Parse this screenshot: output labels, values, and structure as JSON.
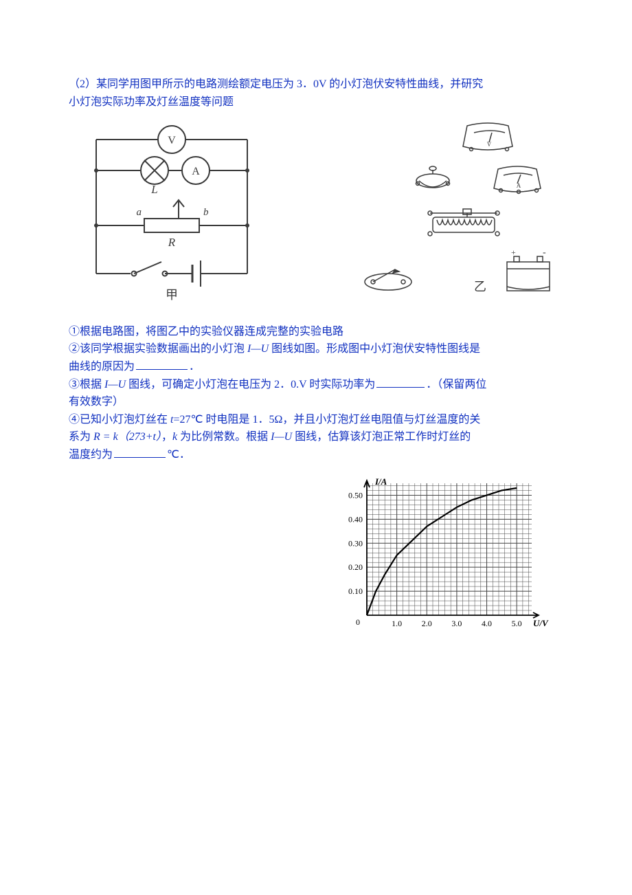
{
  "intro": {
    "line1": "（2）某同学用图甲所示的电路测绘额定电压为 3．0V 的小灯泡伏安特性曲线，并研究",
    "line2": "小灯泡实际功率及灯丝温度等问题"
  },
  "circuit": {
    "labels": {
      "L": "L",
      "a": "a",
      "b": "b",
      "R": "R",
      "caption": "甲"
    },
    "stroke": "#3a3a3a",
    "stroke_width": 2
  },
  "instruments": {
    "caption_right": "乙"
  },
  "questions": {
    "q1": "①根据电路图，将图乙中的实验仪器连成完整的实验电路",
    "q2_a": "②该同学根据实验数据画出的小灯泡 ",
    "q2_b": " 图线如图。形成图中小灯泡伏安特性图线是",
    "q2_c": "曲线的原因为",
    "q2_d": "．",
    "iu_a": "I—U",
    "q3_a": "③根据 ",
    "q3_b": " 图线，可确定小灯泡在电压为 2．0.V 时实际功率为",
    "q3_c": "．（保留两位",
    "q3_d": "有效数字）",
    "q4_a": "④已知小灯泡灯丝在 ",
    "q4_b": "=27℃ 时电阻是 1．5Ω，并且小灯泡灯丝电阻值与灯丝温度的关",
    "q4_c": "系为 ",
    "q4_eq": "R = k（273+t）",
    "q4_d": "，",
    "q4_e": " 为比例常数。根据 ",
    "q4_f": " 图线，估算该灯泡正常工作时灯丝的",
    "q4_g": "温度约为",
    "q4_h": "℃．",
    "t_sym": "t",
    "k_sym": "k"
  },
  "chart": {
    "type": "line",
    "x_label": "U/V",
    "y_label": "I/A",
    "xlim": [
      0,
      5.5
    ],
    "ylim": [
      0,
      0.55
    ],
    "x_ticks": [
      1.0,
      2.0,
      3.0,
      4.0,
      5.0
    ],
    "y_ticks": [
      0.1,
      0.2,
      0.3,
      0.4,
      0.5
    ],
    "x_tick_labels": [
      "1.0",
      "2.0",
      "3.0",
      "4.0",
      "5.0"
    ],
    "y_tick_labels": [
      "0.10",
      "0.20",
      "0.30",
      "0.40",
      "0.50"
    ],
    "grid_step_x": 0.2,
    "grid_step_y": 0.02,
    "grid_color": "#444444",
    "axis_color": "#000000",
    "curve_color": "#000000",
    "curve_points": [
      [
        0.0,
        0.0
      ],
      [
        0.3,
        0.1
      ],
      [
        0.6,
        0.17
      ],
      [
        1.0,
        0.25
      ],
      [
        1.5,
        0.31
      ],
      [
        2.0,
        0.37
      ],
      [
        2.5,
        0.41
      ],
      [
        3.0,
        0.45
      ],
      [
        3.5,
        0.48
      ],
      [
        4.0,
        0.5
      ],
      [
        4.5,
        0.52
      ],
      [
        5.0,
        0.53
      ]
    ],
    "label_fontsize": 13,
    "tick_fontsize": 12,
    "curve_width": 2.2
  },
  "colors": {
    "text_main": "#1030c0",
    "figure_stroke": "#3a3a3a",
    "bg": "#ffffff"
  }
}
